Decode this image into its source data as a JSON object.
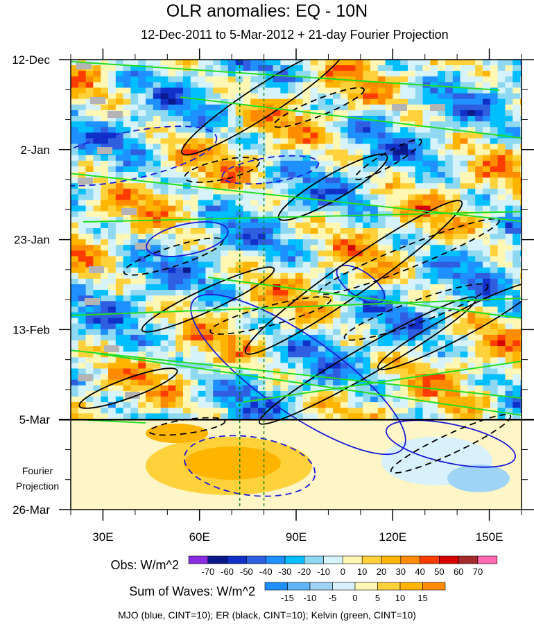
{
  "chart_data": {
    "type": "heatmap",
    "title": "OLR anomalies: EQ - 10N",
    "subtitle": "12-Dec-2011 to 5-Mar-2012 + 21-day Fourier Projection",
    "x_label_ticks": [
      "30E",
      "60E",
      "90E",
      "120E",
      "150E"
    ],
    "x_tick_values": [
      30,
      60,
      90,
      120,
      150
    ],
    "x_range": [
      20,
      160
    ],
    "y_label_ticks": [
      "12-Dec",
      "2-Jan",
      "23-Jan",
      "13-Feb",
      "5-Mar",
      "26-Mar"
    ],
    "y_tick_days": [
      0,
      21,
      42,
      63,
      84,
      105
    ],
    "y_range_days": [
      0,
      105
    ],
    "projection_start_day": 84,
    "projection_label": [
      "Fourier",
      "Projection"
    ],
    "reference_longitudes": [
      72.5,
      80
    ],
    "obs_legend": {
      "label": "Obs: W/m^2",
      "ticks": [
        "-70",
        "-60",
        "-50",
        "-40",
        "-30",
        "-20",
        "-10",
        "0",
        "10",
        "20",
        "30",
        "40",
        "50",
        "60",
        "70"
      ],
      "colors": [
        "#8a2be2",
        "#0a1a8c",
        "#1030c8",
        "#2f5fe0",
        "#1e90ff",
        "#00bfff",
        "#8fd8f2",
        "#d6f3fb",
        "#fff7b3",
        "#ffd23c",
        "#ffb400",
        "#ff8c00",
        "#ff3c00",
        "#d70000",
        "#a52a2a",
        "#ff69b4"
      ]
    },
    "waves_legend": {
      "label": "Sum of Waves: W/m^2",
      "ticks": [
        "-15",
        "-10",
        "-5",
        "0",
        "5",
        "10",
        "15"
      ],
      "colors": [
        "#1e90ff",
        "#5fb4f8",
        "#9fd4f6",
        "#d9f1fb",
        "#fff7b3",
        "#ffd23c",
        "#ffb400",
        "#ff8c00"
      ]
    },
    "series": [
      {
        "name": "MJO",
        "color": "blue",
        "cint": 10
      },
      {
        "name": "ER",
        "color": "black",
        "cint": 10
      },
      {
        "name": "Kelvin",
        "color": "green",
        "cint": 10
      }
    ],
    "footer": "MJO (blue, CINT=10); ER (black, CINT=10); Kelvin (green, CINT=10)"
  }
}
